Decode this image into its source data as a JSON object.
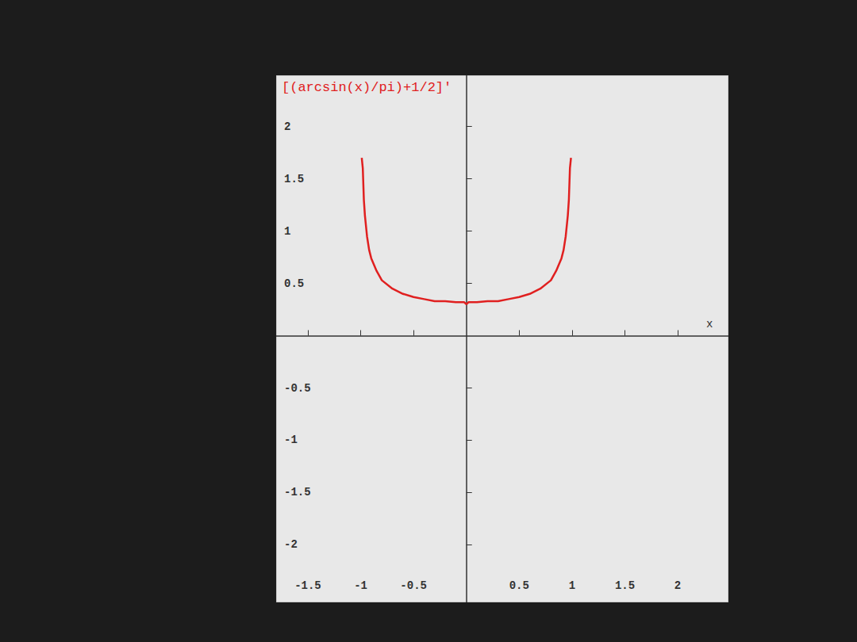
{
  "chart_data": {
    "type": "line",
    "title": "[(arcsin(x)/pi)+1/2]'",
    "x_label": "x",
    "x": [
      -0.99,
      -0.98,
      -0.97,
      -0.96,
      -0.94,
      -0.92,
      -0.9,
      -0.85,
      -0.8,
      -0.7,
      -0.6,
      -0.5,
      -0.4,
      -0.3,
      -0.2,
      -0.1,
      -0.02,
      0,
      0.02,
      0.1,
      0.2,
      0.3,
      0.4,
      0.5,
      0.6,
      0.7,
      0.8,
      0.85,
      0.9,
      0.92,
      0.94,
      0.96,
      0.97,
      0.98,
      0.99
    ],
    "values": [
      1.7,
      1.6,
      1.3,
      1.15,
      0.95,
      0.82,
      0.74,
      0.62,
      0.53,
      0.45,
      0.4,
      0.37,
      0.35,
      0.33,
      0.33,
      0.32,
      0.32,
      0.3,
      0.32,
      0.32,
      0.33,
      0.33,
      0.35,
      0.37,
      0.4,
      0.45,
      0.53,
      0.62,
      0.74,
      0.82,
      0.95,
      1.15,
      1.3,
      1.6,
      1.7
    ],
    "color": "#e02020",
    "xlim": [
      -1.8,
      2.48
    ],
    "xticks": [
      -1.5,
      -1,
      -0.5,
      0.5,
      1,
      1.5,
      2
    ],
    "ylim": [
      -2.55,
      2.49
    ],
    "yticks": [
      -2,
      -1.5,
      -1,
      -0.5,
      0.5,
      1,
      1.5,
      2
    ],
    "grid": false
  }
}
